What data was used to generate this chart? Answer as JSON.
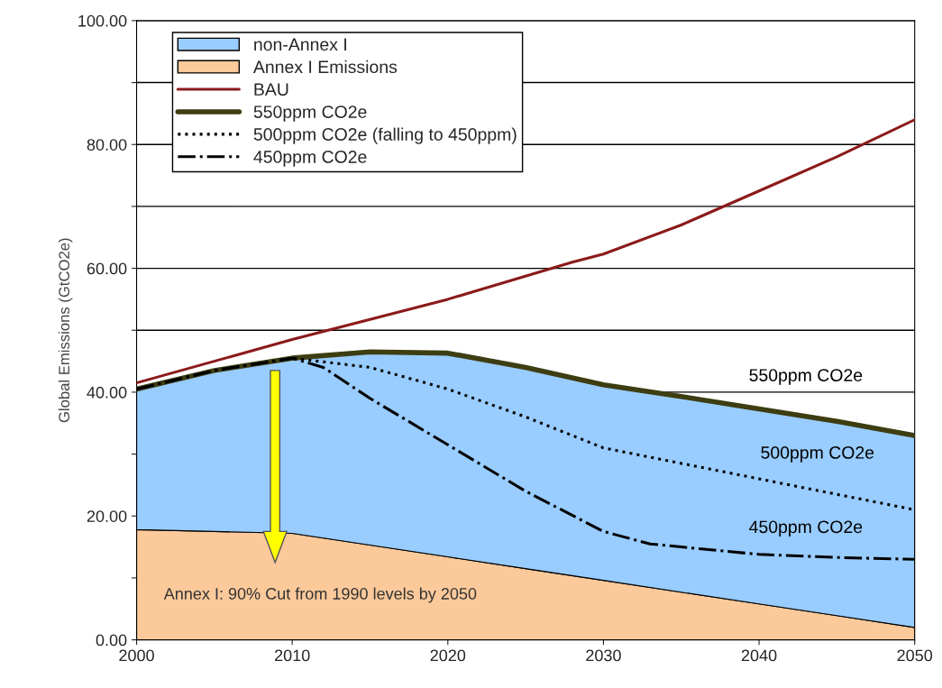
{
  "chart_data": {
    "type": "area",
    "stacked": true,
    "ylabel": "Global Emissions (GtCO2e)",
    "x": [
      2000,
      2005,
      2010,
      2015,
      2020,
      2025,
      2030,
      2035,
      2040,
      2045,
      2050
    ],
    "series": [
      {
        "name": "Annex I Emissions",
        "color": "#fbc99a",
        "values": [
          17.8,
          17.5,
          17.2,
          15.3,
          13.4,
          11.5,
          9.6,
          7.7,
          5.8,
          3.9,
          2.0
        ]
      },
      {
        "name": "non-Annex I",
        "color": "#99ccff",
        "values": [
          22.7,
          26.0,
          28.3,
          31.2,
          32.9,
          32.5,
          31.6,
          31.6,
          31.5,
          31.4,
          31.0
        ]
      },
      {
        "name": "BAU",
        "type": "line",
        "color": "#8b1a1a",
        "line_style": "solid",
        "x": [
          2000,
          2010,
          2020,
          2028,
          2030,
          2035,
          2040,
          2045,
          2050
        ],
        "values": [
          41.5,
          48.5,
          55,
          61,
          62.3,
          67,
          72.5,
          78,
          84
        ]
      },
      {
        "name": "550ppm CO2e",
        "type": "line",
        "color": "#3d3d12",
        "line_style": "solid",
        "x": [
          2000,
          2005,
          2010,
          2015,
          2020,
          2025,
          2030,
          2035,
          2040,
          2045,
          2050
        ],
        "values": [
          40.5,
          43.5,
          45.5,
          46.5,
          46.3,
          44,
          41.2,
          39.3,
          37.3,
          35.3,
          33
        ]
      },
      {
        "name": "500ppm CO2e (falling to 450ppm)",
        "type": "line",
        "color": "#000000",
        "line_style": "dotted",
        "x": [
          2000,
          2005,
          2010,
          2015,
          2020,
          2025,
          2030,
          2035,
          2040,
          2045,
          2050
        ],
        "values": [
          40.5,
          43.5,
          45.5,
          44,
          40.5,
          36,
          31,
          28.5,
          26,
          23.5,
          21
        ]
      },
      {
        "name": "450ppm CO2e",
        "type": "line",
        "color": "#000000",
        "line_style": "dashdot",
        "x": [
          2000,
          2005,
          2010,
          2012,
          2015,
          2020,
          2025,
          2030,
          2033,
          2035,
          2040,
          2045,
          2050
        ],
        "values": [
          40.5,
          43.5,
          45.5,
          44,
          39,
          31.5,
          24,
          17.5,
          15.5,
          15,
          13.8,
          13.3,
          13
        ]
      }
    ],
    "xlim": [
      2000,
      2050
    ],
    "xticks": [
      2000,
      2010,
      2020,
      2030,
      2040,
      2050
    ],
    "ylim": [
      0,
      100
    ],
    "yticks": [
      {
        "value": 0,
        "label": "0.00"
      },
      {
        "value": 10,
        "label": null
      },
      {
        "value": 20,
        "label": "20.00"
      },
      {
        "value": 30,
        "label": null
      },
      {
        "value": 40,
        "label": "40.00"
      },
      {
        "value": 50,
        "label": null
      },
      {
        "value": 60,
        "label": "60.00"
      },
      {
        "value": 70,
        "label": null
      },
      {
        "value": 80,
        "label": "80.00"
      },
      {
        "value": 90,
        "label": null
      },
      {
        "value": 100,
        "label": "100.00"
      }
    ],
    "grid": "y",
    "legend": "top left",
    "annotations": [
      "550ppm CO2e",
      "500ppm CO2e",
      "450ppm CO2e",
      "Annex I: 90% Cut from 1990 levels by 2050"
    ]
  }
}
